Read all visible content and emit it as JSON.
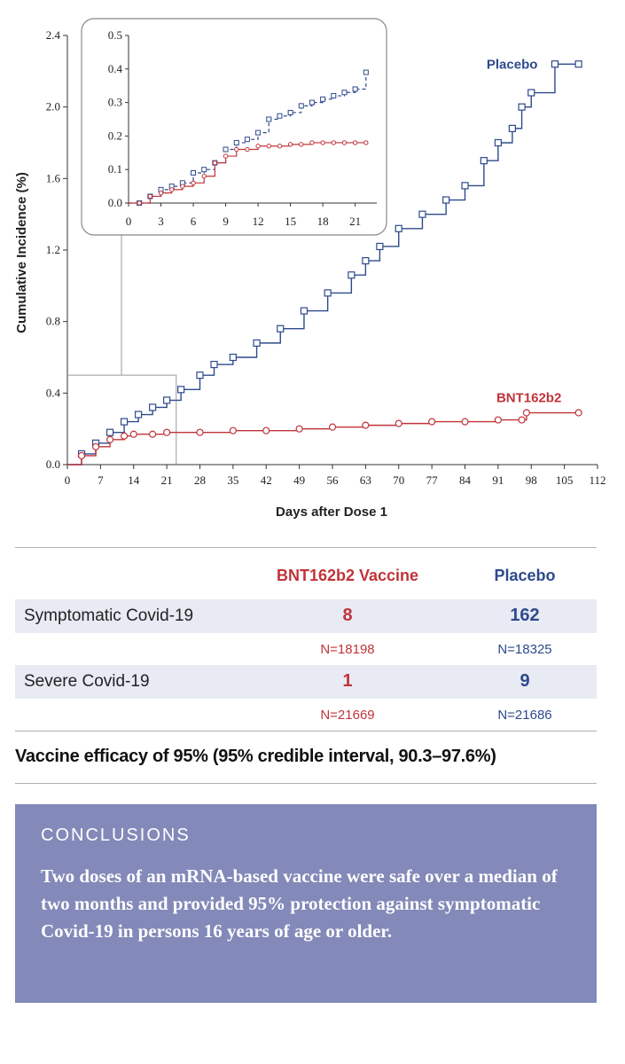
{
  "chart_data": {
    "type": "line",
    "xlabel": "Days after Dose 1",
    "ylabel": "Cumulative Incidence (%)",
    "xlim": [
      0,
      112
    ],
    "ylim": [
      0,
      2.4
    ],
    "xticks": [
      "0",
      "7",
      "14",
      "21",
      "28",
      "35",
      "42",
      "49",
      "56",
      "63",
      "70",
      "77",
      "84",
      "91",
      "98",
      "105",
      "112"
    ],
    "yticks": [
      "0.0",
      "0.4",
      "0.8",
      "1.2",
      "1.6",
      "2.0",
      "2.4"
    ],
    "series": [
      {
        "name": "Placebo",
        "color": "#2e4a8c",
        "x": [
          0,
          3,
          6,
          9,
          12,
          15,
          18,
          21,
          24,
          28,
          31,
          35,
          40,
          45,
          50,
          55,
          60,
          63,
          66,
          70,
          75,
          80,
          84,
          88,
          91,
          94,
          96,
          98,
          103,
          108
        ],
        "y": [
          0.0,
          0.06,
          0.12,
          0.18,
          0.24,
          0.28,
          0.32,
          0.36,
          0.42,
          0.5,
          0.56,
          0.6,
          0.68,
          0.76,
          0.86,
          0.96,
          1.06,
          1.14,
          1.22,
          1.32,
          1.4,
          1.48,
          1.56,
          1.7,
          1.8,
          1.88,
          2.0,
          2.08,
          2.24,
          2.24
        ]
      },
      {
        "name": "BNT162b2",
        "color": "#c0343a",
        "x": [
          0,
          3,
          6,
          9,
          12,
          14,
          18,
          21,
          28,
          35,
          42,
          49,
          56,
          63,
          70,
          77,
          84,
          91,
          96,
          97,
          108
        ],
        "y": [
          0.0,
          0.05,
          0.1,
          0.14,
          0.16,
          0.17,
          0.17,
          0.18,
          0.18,
          0.19,
          0.19,
          0.2,
          0.21,
          0.22,
          0.23,
          0.24,
          0.24,
          0.25,
          0.25,
          0.29,
          0.29
        ]
      }
    ],
    "inset": {
      "xlim": [
        0,
        23
      ],
      "ylim": [
        0,
        0.5
      ],
      "xticks": [
        "0",
        "3",
        "6",
        "9",
        "12",
        "15",
        "18",
        "21"
      ],
      "yticks": [
        "0.0",
        "0.1",
        "0.2",
        "0.3",
        "0.4",
        "0.5"
      ],
      "series": [
        {
          "name": "Placebo",
          "x": [
            0,
            1,
            2,
            3,
            4,
            5,
            6,
            7,
            8,
            9,
            10,
            11,
            12,
            13,
            14,
            15,
            16,
            17,
            18,
            19,
            20,
            21,
            22
          ],
          "y": [
            0.0,
            0.0,
            0.02,
            0.04,
            0.05,
            0.06,
            0.09,
            0.1,
            0.12,
            0.16,
            0.18,
            0.19,
            0.21,
            0.25,
            0.26,
            0.27,
            0.29,
            0.3,
            0.31,
            0.32,
            0.33,
            0.34,
            0.39
          ]
        },
        {
          "name": "BNT162b2",
          "x": [
            0,
            1,
            2,
            3,
            4,
            5,
            6,
            7,
            8,
            9,
            10,
            11,
            12,
            13,
            14,
            15,
            16,
            17,
            18,
            19,
            20,
            21,
            22
          ],
          "y": [
            0.0,
            0.0,
            0.02,
            0.03,
            0.04,
            0.05,
            0.06,
            0.08,
            0.12,
            0.14,
            0.16,
            0.16,
            0.17,
            0.17,
            0.17,
            0.175,
            0.175,
            0.18,
            0.18,
            0.18,
            0.18,
            0.18,
            0.18
          ]
        }
      ]
    }
  },
  "table": {
    "header_vaccine": "BNT162b2 Vaccine",
    "header_placebo": "Placebo",
    "rows": [
      {
        "label": "Symptomatic Covid-19",
        "vaccine": "8",
        "placebo": "162",
        "vaccine_n": "N=18198",
        "placebo_n": "N=18325"
      },
      {
        "label": "Severe Covid-19",
        "vaccine": "1",
        "placebo": "9",
        "vaccine_n": "N=21669",
        "placebo_n": "N=21686"
      }
    ],
    "efficacy": "Vaccine efficacy of 95% (95% credible interval, 90.3–97.6%)"
  },
  "conclusions": {
    "title": "CONCLUSIONS",
    "body": "Two doses of an mRNA-based vaccine were safe over a median of two months and provided 95% protection against symptomatic Covid-19 in persons 16 years of age or older."
  },
  "colors": {
    "vaccine": "#c0343a",
    "placebo": "#2e4a8c",
    "conclusions_bg": "#8389b8"
  }
}
